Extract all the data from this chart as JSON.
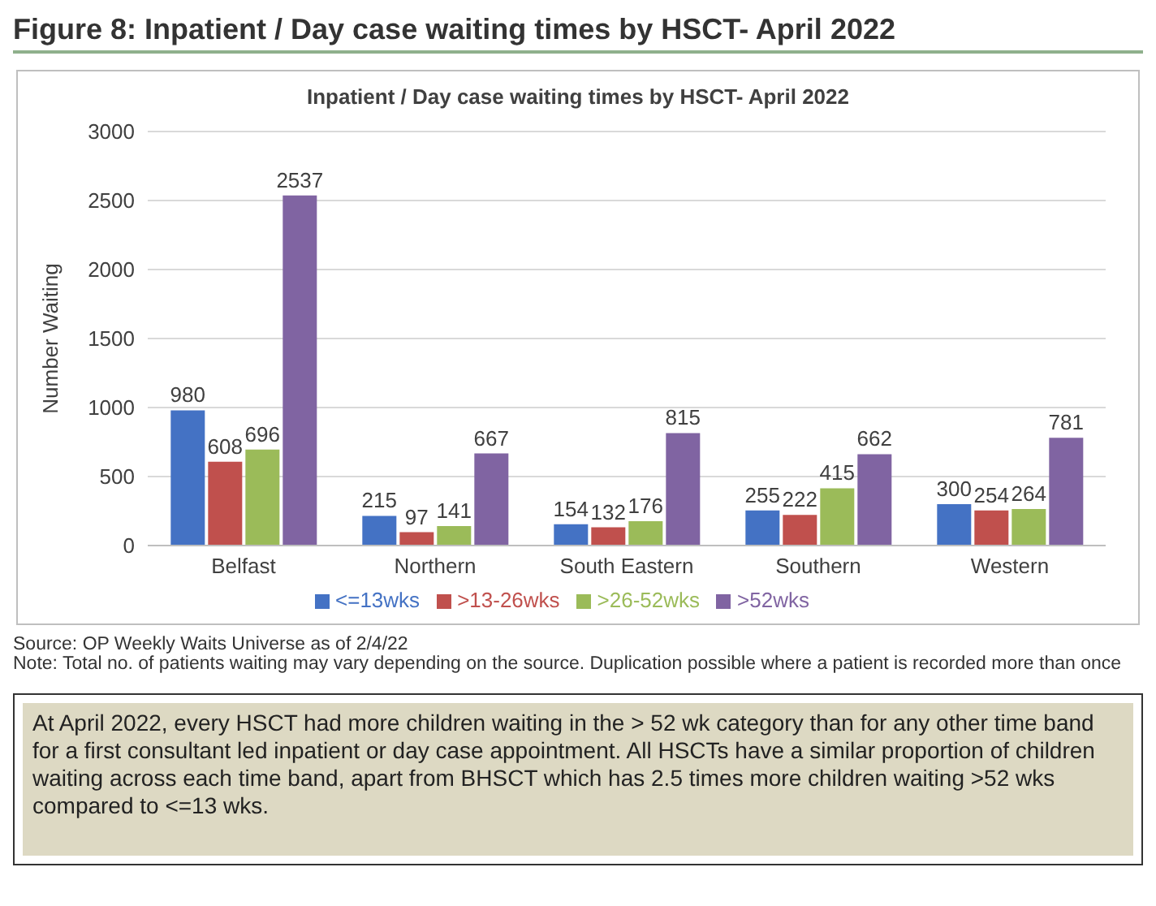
{
  "chart_data": {
    "type": "bar",
    "title": "Figure 8: Inpatient / Day case waiting times by HSCT- April 2022",
    "subtitle": "Inpatient / Day case waiting times by HSCT- April 2022",
    "ylabel": "Number Waiting",
    "categories": [
      "Belfast",
      "Northern",
      "South Eastern",
      "Southern",
      "Western"
    ],
    "series": [
      {
        "name": "<=13wks",
        "color": "#4472c4",
        "values": [
          980,
          215,
          154,
          255,
          300
        ]
      },
      {
        "name": ">13-26wks",
        "color": "#c0504d",
        "values": [
          608,
          97,
          132,
          222,
          254
        ]
      },
      {
        "name": ">26-52wks",
        "color": "#9bbb59",
        "values": [
          696,
          141,
          176,
          415,
          264
        ]
      },
      {
        "name": ">52wks",
        "color": "#8064a2",
        "values": [
          2537,
          667,
          815,
          662,
          781
        ]
      }
    ],
    "ylim": [
      0,
      3000
    ],
    "yticks": [
      0,
      500,
      1000,
      1500,
      2000,
      2500,
      3000
    ],
    "grid": "y",
    "legend": "bottom",
    "data_labels": true,
    "annotations": [
      "Source: OP Weekly Waits Universe as of 2/4/22",
      "Note: Total no. of patients waiting may vary depending on the source. Duplication possible where a patient is recorded more than once",
      "At April 2022, every HSCT had more children waiting in the > 52 wk category than for any other time band for a first consultant led inpatient or day case appointment. All HSCTs have a similar proportion of children waiting across each time band, apart from BHSCT which has 2.5 times more children waiting >52 wks compared to <=13 wks."
    ]
  }
}
